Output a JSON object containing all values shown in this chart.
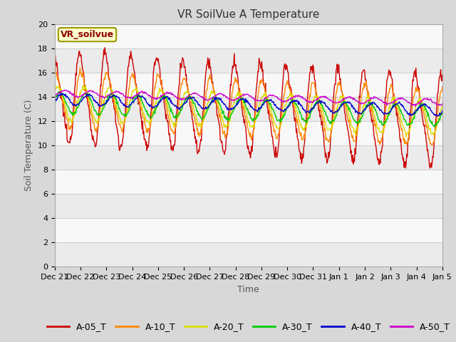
{
  "title": "VR SoilVue A Temperature",
  "xlabel": "Time",
  "ylabel": "Soil Temperature (C)",
  "ylim": [
    0,
    20
  ],
  "yticks": [
    0,
    2,
    4,
    6,
    8,
    10,
    12,
    14,
    16,
    18,
    20
  ],
  "fig_bg_color": "#d8d8d8",
  "plot_bg_color": "#ffffff",
  "watermark": "VR_soilvue",
  "colors": {
    "A-05_T": "#cc0000",
    "A-10_T": "#ff8800",
    "A-20_T": "#dddd00",
    "A-30_T": "#00cc00",
    "A-40_T": "#0000cc",
    "A-50_T": "#cc00cc"
  },
  "x_ticks_labels": [
    "Dec 21",
    "Dec 22",
    "Dec 23",
    "Dec 24",
    "Dec 25",
    "Dec 26",
    "Dec 27",
    "Dec 28",
    "Dec 29",
    "Dec 30",
    "Dec 31",
    "Jan 1",
    "Jan 2",
    "Jan 3",
    "Jan 4",
    "Jan 5"
  ],
  "title_fontsize": 11,
  "axis_label_fontsize": 9,
  "tick_fontsize": 8,
  "legend_fontsize": 9
}
